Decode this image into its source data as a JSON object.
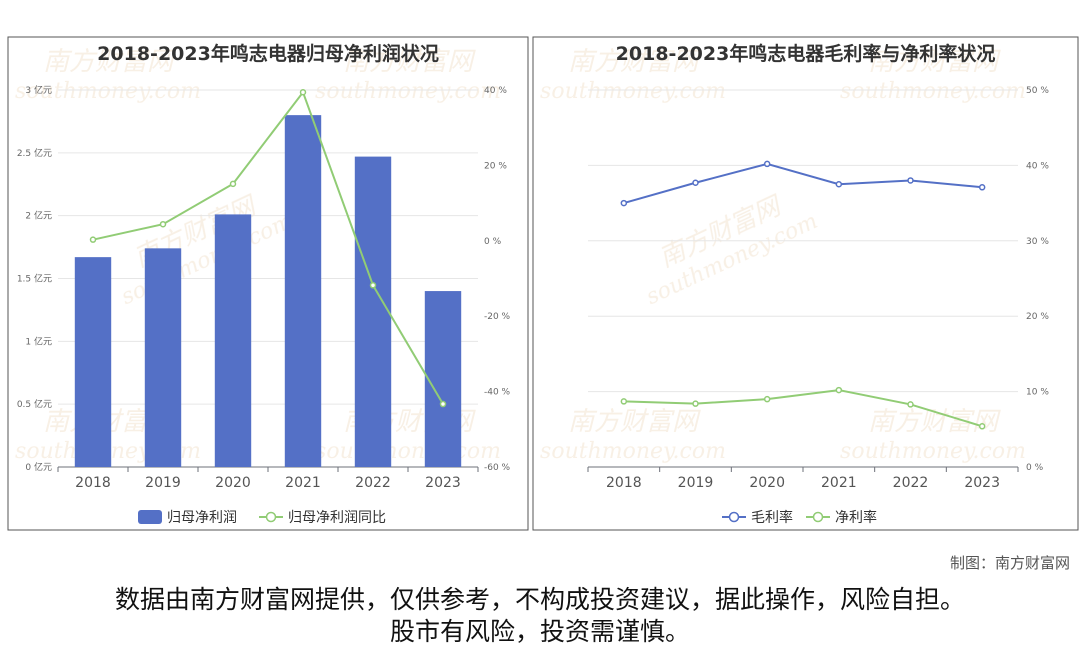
{
  "watermark": {
    "cn": "南方财富网",
    "en": "southmoney.com"
  },
  "charts": [
    {
      "title": "2018-2023年鸣志电器归母净利润状况",
      "legend": [
        "归母净利润",
        "归母净利润同比"
      ]
    },
    {
      "title": "2018-2023年鸣志电器毛利率与净利率状况",
      "legend": [
        "毛利率",
        "净利率"
      ]
    }
  ],
  "chart_data": [
    {
      "type": "bar",
      "title": "2018-2023年鸣志电器归母净利润状况",
      "categories": [
        "2018",
        "2019",
        "2020",
        "2021",
        "2022",
        "2023"
      ],
      "series": [
        {
          "name": "归母净利润",
          "kind": "bar",
          "axis": "left",
          "unit": "亿元",
          "color": "#5470c6",
          "values": [
            1.67,
            1.74,
            2.01,
            2.8,
            2.47,
            1.4
          ]
        },
        {
          "name": "归母净利润同比",
          "kind": "line",
          "axis": "right",
          "unit": "%",
          "color": "#91cc75",
          "values": [
            0.3,
            4.4,
            15.1,
            39.4,
            -11.8,
            -43.3
          ]
        }
      ],
      "y_left": {
        "min": 0,
        "max": 3,
        "ticks": [
          "0 亿元",
          "0.5 亿元",
          "1 亿元",
          "1.5 亿元",
          "2 亿元",
          "2.5 亿元",
          "3 亿元"
        ]
      },
      "y_right": {
        "min": -60,
        "max": 40,
        "ticks": [
          "-60 %",
          "-40 %",
          "-20 %",
          "0 %",
          "20 %",
          "40 %"
        ]
      },
      "legend_position": "bottom"
    },
    {
      "type": "line",
      "title": "2018-2023年鸣志电器毛利率与净利率状况",
      "categories": [
        "2018",
        "2019",
        "2020",
        "2021",
        "2022",
        "2023"
      ],
      "series": [
        {
          "name": "毛利率",
          "unit": "%",
          "color": "#5470c6",
          "values": [
            35.0,
            37.7,
            40.2,
            37.5,
            38.0,
            37.1
          ]
        },
        {
          "name": "净利率",
          "unit": "%",
          "color": "#91cc75",
          "values": [
            8.7,
            8.4,
            9.0,
            10.2,
            8.3,
            5.4
          ]
        }
      ],
      "y_right": {
        "min": 0,
        "max": 50,
        "ticks": [
          "0 %",
          "10 %",
          "20 %",
          "30 %",
          "40 %",
          "50 %"
        ]
      },
      "legend_position": "bottom"
    }
  ],
  "footer": {
    "credit": "制图：南方财富网",
    "disclaimer_line1": "数据由南方财富网提供，仅供参考，不构成投资建议，据此操作，风险自担。",
    "disclaimer_line2": "股市有风险，投资需谨慎。"
  }
}
